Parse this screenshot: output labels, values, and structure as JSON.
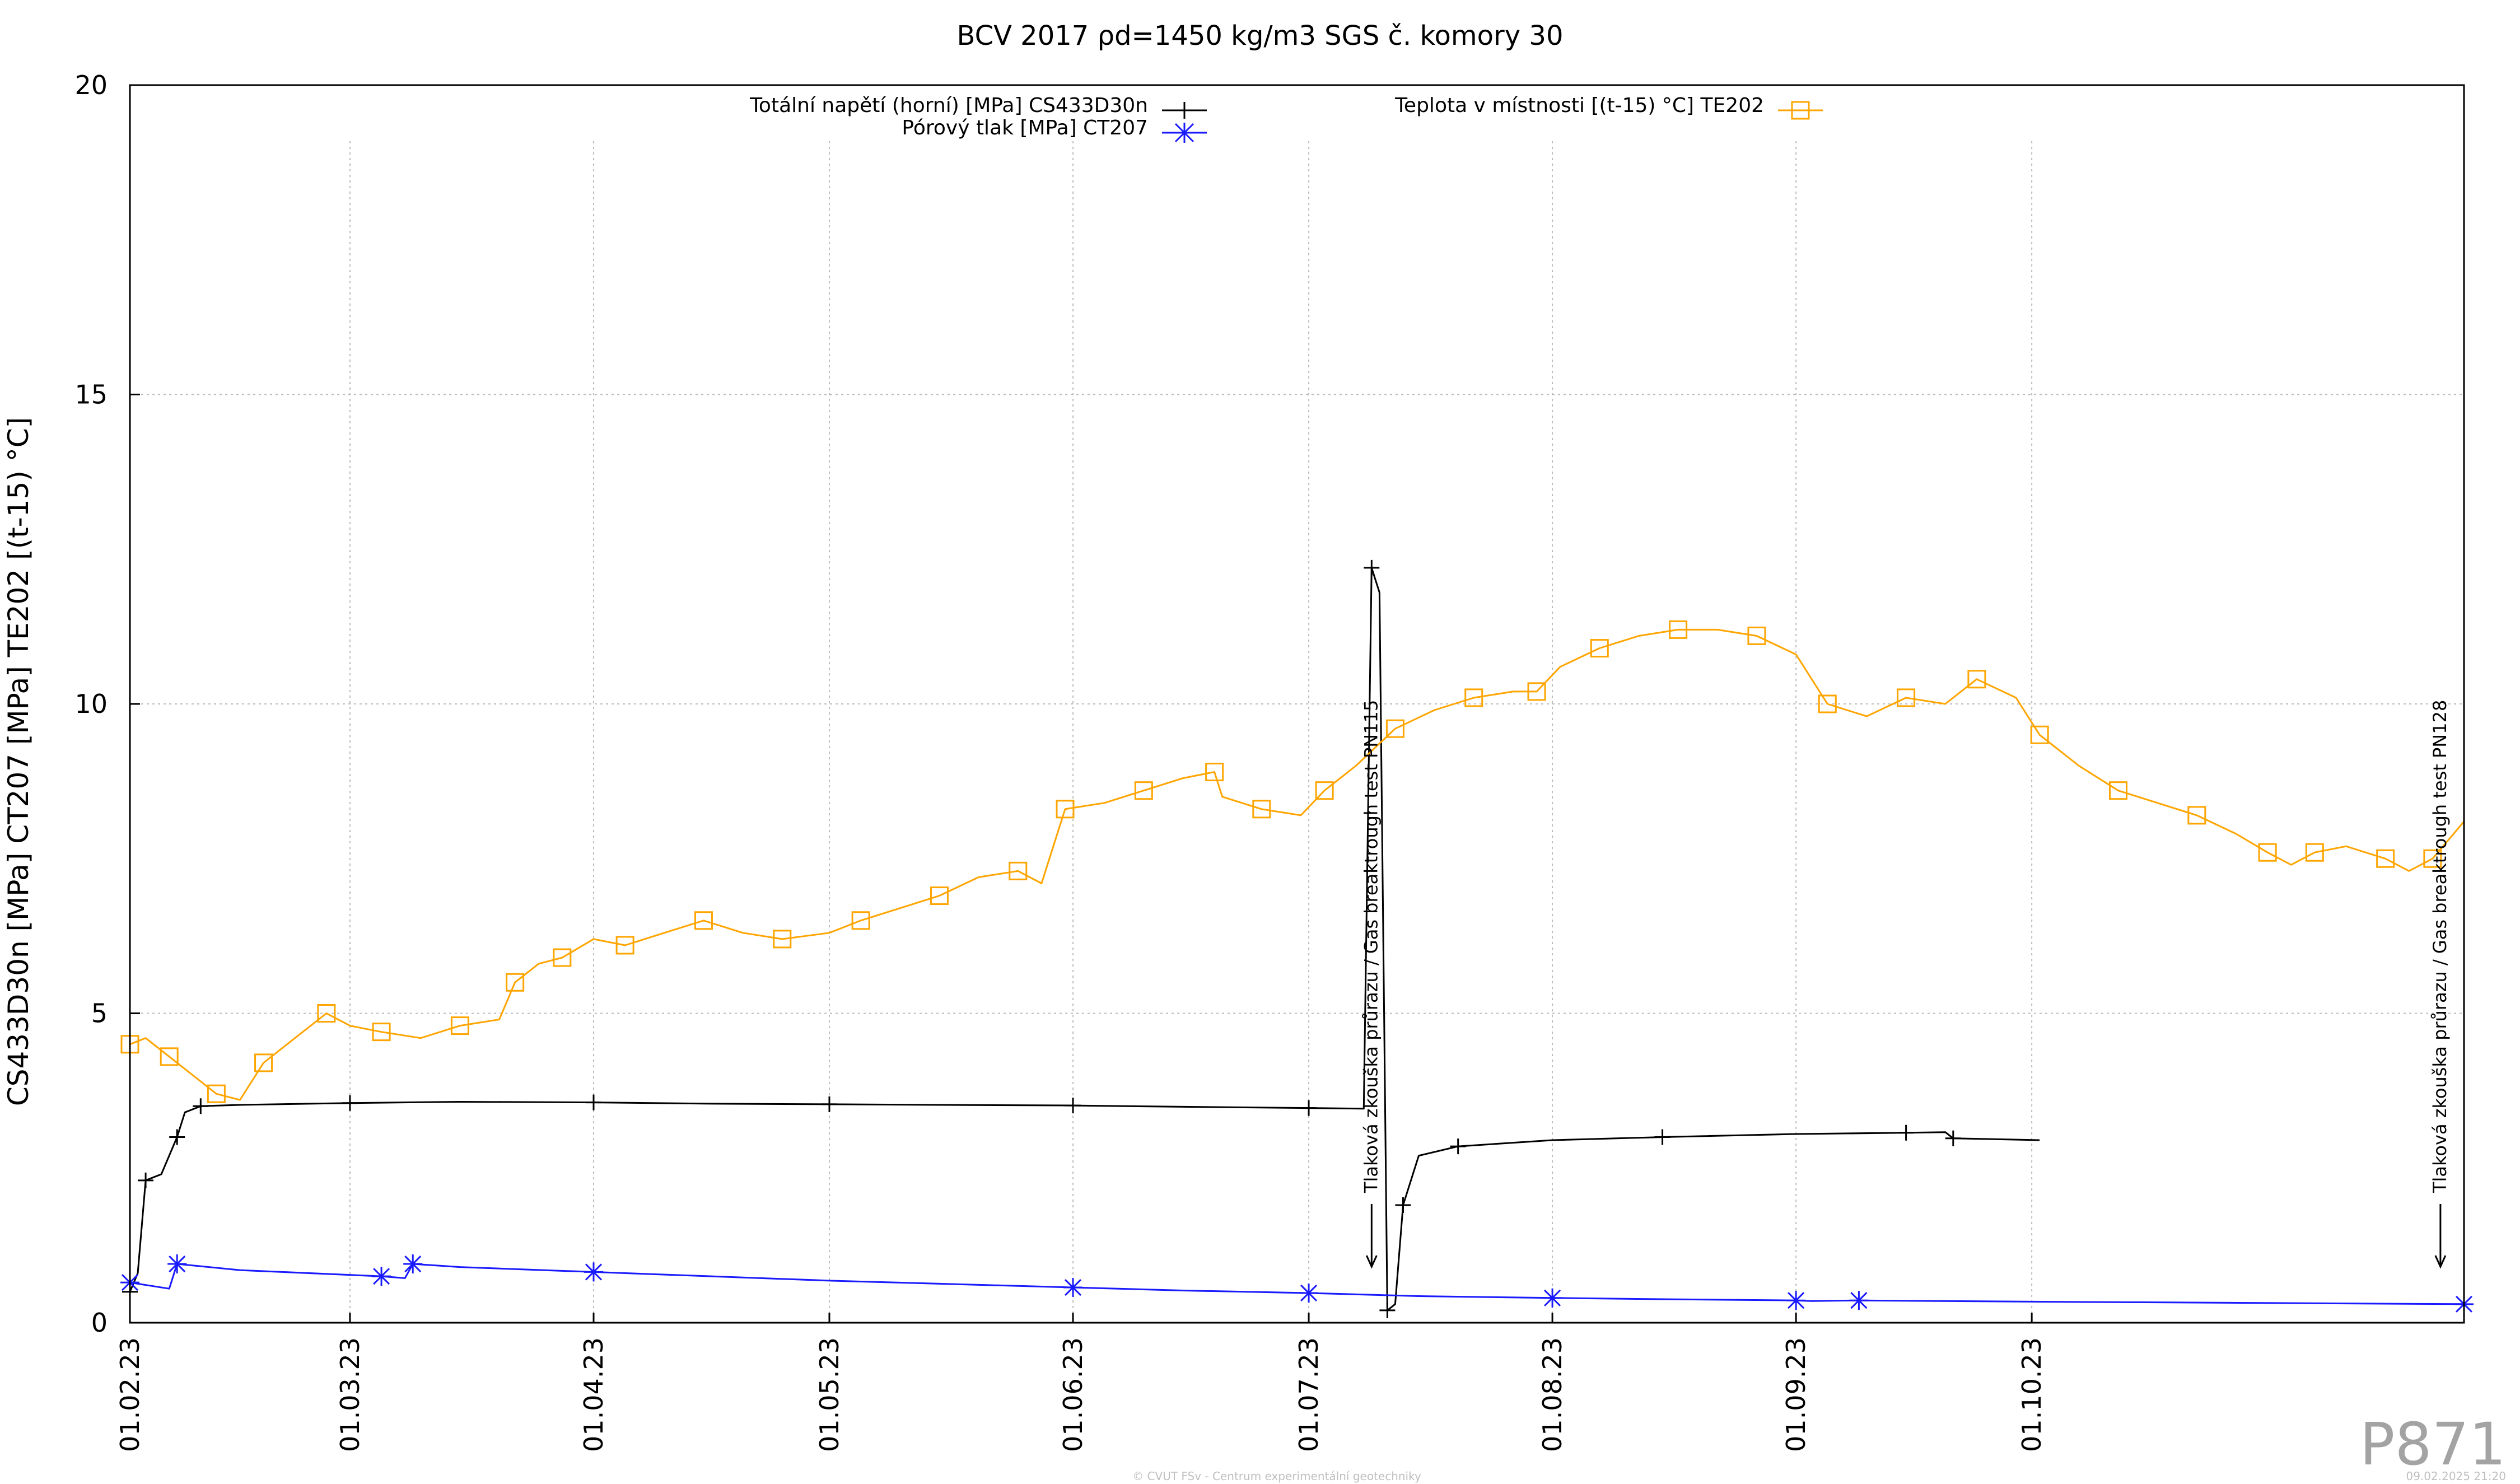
{
  "chart_data": {
    "type": "line",
    "title": "BCV 2017 ρd=1450 kg/m3 SGS č. komory 30",
    "ylabel": "CS433D30n [MPa] CT207 [MPa] TE202 [(t-15) °C]",
    "xlabel": "",
    "ylim": [
      0,
      20
    ],
    "yticks": [
      0,
      5,
      10,
      15,
      20
    ],
    "xlim": [
      "2023-02-01",
      "2023-11-25"
    ],
    "xticks": [
      "01.02.23",
      "01.03.23",
      "01.04.23",
      "01.05.23",
      "01.06.23",
      "01.07.23",
      "01.08.23",
      "01.09.23",
      "01.10.23"
    ],
    "xtick_dates": [
      "2023-02-01",
      "2023-03-01",
      "2023-04-01",
      "2023-05-01",
      "2023-06-01",
      "2023-07-01",
      "2023-08-01",
      "2023-09-01",
      "2023-10-01"
    ],
    "grid": true,
    "legend_position": "top",
    "series": [
      {
        "name": "Totální napětí (horní) [MPa] CS433D30n",
        "color": "#000000",
        "marker": "plus",
        "points": [
          [
            "2023-02-01",
            0.5
          ],
          [
            "2023-02-02",
            0.8
          ],
          [
            "2023-02-03",
            2.3
          ],
          [
            "2023-02-05",
            2.4
          ],
          [
            "2023-02-07",
            3.0
          ],
          [
            "2023-02-08",
            3.4
          ],
          [
            "2023-02-10",
            3.5
          ],
          [
            "2023-02-15",
            3.52
          ],
          [
            "2023-03-01",
            3.55
          ],
          [
            "2023-03-15",
            3.57
          ],
          [
            "2023-04-01",
            3.56
          ],
          [
            "2023-04-15",
            3.54
          ],
          [
            "2023-05-01",
            3.53
          ],
          [
            "2023-05-15",
            3.52
          ],
          [
            "2023-06-01",
            3.51
          ],
          [
            "2023-06-15",
            3.49
          ],
          [
            "2023-07-01",
            3.47
          ],
          [
            "2023-07-08",
            3.46
          ],
          [
            "2023-07-09",
            12.2
          ],
          [
            "2023-07-10",
            11.8
          ],
          [
            "2023-07-11",
            0.2
          ],
          [
            "2023-07-12",
            0.3
          ],
          [
            "2023-07-13",
            1.9
          ],
          [
            "2023-07-15",
            2.7
          ],
          [
            "2023-07-20",
            2.85
          ],
          [
            "2023-08-01",
            2.95
          ],
          [
            "2023-08-15",
            3.0
          ],
          [
            "2023-09-01",
            3.05
          ],
          [
            "2023-09-15",
            3.07
          ],
          [
            "2023-09-20",
            3.08
          ],
          [
            "2023-09-21",
            2.98
          ],
          [
            "2023-10-02",
            2.95
          ]
        ]
      },
      {
        "name": "Pórový tlak [MPa] CT207",
        "color": "#1a1aff",
        "marker": "star",
        "points": [
          [
            "2023-02-01",
            0.65
          ],
          [
            "2023-02-06",
            0.55
          ],
          [
            "2023-02-07",
            0.95
          ],
          [
            "2023-02-15",
            0.85
          ],
          [
            "2023-03-05",
            0.75
          ],
          [
            "2023-03-08",
            0.72
          ],
          [
            "2023-03-09",
            0.95
          ],
          [
            "2023-03-15",
            0.9
          ],
          [
            "2023-04-01",
            0.82
          ],
          [
            "2023-05-01",
            0.68
          ],
          [
            "2023-06-01",
            0.57
          ],
          [
            "2023-06-15",
            0.52
          ],
          [
            "2023-07-01",
            0.48
          ],
          [
            "2023-07-15",
            0.43
          ],
          [
            "2023-08-01",
            0.4
          ],
          [
            "2023-08-15",
            0.38
          ],
          [
            "2023-09-01",
            0.36
          ],
          [
            "2023-09-03",
            0.35
          ],
          [
            "2023-09-09",
            0.36
          ],
          [
            "2023-10-01",
            0.34
          ],
          [
            "2023-11-25",
            0.3
          ]
        ]
      },
      {
        "name": "Teplota v místnosti [(t-15) °C] TE202",
        "color": "#ffa500",
        "marker": "square",
        "points": [
          [
            "2023-02-01",
            4.5
          ],
          [
            "2023-02-03",
            4.6
          ],
          [
            "2023-02-06",
            4.3
          ],
          [
            "2023-02-09",
            4.0
          ],
          [
            "2023-02-12",
            3.7
          ],
          [
            "2023-02-15",
            3.6
          ],
          [
            "2023-02-18",
            4.2
          ],
          [
            "2023-02-22",
            4.6
          ],
          [
            "2023-02-26",
            5.0
          ],
          [
            "2023-03-01",
            4.8
          ],
          [
            "2023-03-05",
            4.7
          ],
          [
            "2023-03-10",
            4.6
          ],
          [
            "2023-03-15",
            4.8
          ],
          [
            "2023-03-20",
            4.9
          ],
          [
            "2023-03-22",
            5.5
          ],
          [
            "2023-03-25",
            5.8
          ],
          [
            "2023-03-28",
            5.9
          ],
          [
            "2023-04-01",
            6.2
          ],
          [
            "2023-04-05",
            6.1
          ],
          [
            "2023-04-10",
            6.3
          ],
          [
            "2023-04-15",
            6.5
          ],
          [
            "2023-04-20",
            6.3
          ],
          [
            "2023-04-25",
            6.2
          ],
          [
            "2023-05-01",
            6.3
          ],
          [
            "2023-05-05",
            6.5
          ],
          [
            "2023-05-10",
            6.7
          ],
          [
            "2023-05-15",
            6.9
          ],
          [
            "2023-05-20",
            7.2
          ],
          [
            "2023-05-25",
            7.3
          ],
          [
            "2023-05-28",
            7.1
          ],
          [
            "2023-05-31",
            8.3
          ],
          [
            "2023-06-05",
            8.4
          ],
          [
            "2023-06-10",
            8.6
          ],
          [
            "2023-06-15",
            8.8
          ],
          [
            "2023-06-19",
            8.9
          ],
          [
            "2023-06-20",
            8.5
          ],
          [
            "2023-06-25",
            8.3
          ],
          [
            "2023-06-30",
            8.2
          ],
          [
            "2023-07-03",
            8.6
          ],
          [
            "2023-07-07",
            9.0
          ],
          [
            "2023-07-12",
            9.6
          ],
          [
            "2023-07-17",
            9.9
          ],
          [
            "2023-07-22",
            10.1
          ],
          [
            "2023-07-27",
            10.2
          ],
          [
            "2023-07-30",
            10.2
          ],
          [
            "2023-08-02",
            10.6
          ],
          [
            "2023-08-07",
            10.9
          ],
          [
            "2023-08-12",
            11.1
          ],
          [
            "2023-08-17",
            11.2
          ],
          [
            "2023-08-22",
            11.2
          ],
          [
            "2023-08-27",
            11.1
          ],
          [
            "2023-09-01",
            10.8
          ],
          [
            "2023-09-05",
            10.0
          ],
          [
            "2023-09-10",
            9.8
          ],
          [
            "2023-09-15",
            10.1
          ],
          [
            "2023-09-20",
            10.0
          ],
          [
            "2023-09-24",
            10.4
          ],
          [
            "2023-09-29",
            10.1
          ],
          [
            "2023-10-02",
            9.5
          ],
          [
            "2023-10-07",
            9.0
          ],
          [
            "2023-10-12",
            8.6
          ],
          [
            "2023-10-17",
            8.4
          ],
          [
            "2023-10-22",
            8.2
          ],
          [
            "2023-10-27",
            7.9
          ],
          [
            "2023-10-31",
            7.6
          ],
          [
            "2023-11-03",
            7.4
          ],
          [
            "2023-11-06",
            7.6
          ],
          [
            "2023-11-10",
            7.7
          ],
          [
            "2023-11-15",
            7.5
          ],
          [
            "2023-11-18",
            7.3
          ],
          [
            "2023-11-21",
            7.5
          ],
          [
            "2023-11-25",
            8.1
          ]
        ]
      }
    ],
    "annotations": [
      {
        "text": "Tlaková zkouška průrazu / Gas breaktrough test PN115",
        "date": "2023-07-09"
      },
      {
        "text": "Tlaková zkouška průrazu / Gas breaktrough test PN128",
        "date": "2023-11-22"
      }
    ]
  },
  "watermark": "P871",
  "footer_left": "© CVUT FSv - Centrum experimentální geotechniky",
  "footer_right": "09.02.2025 21:20",
  "colors": {
    "grid": "#bbbbbb",
    "temp": "#ffa500",
    "pore": "#1a1aff",
    "stress": "#000000"
  }
}
